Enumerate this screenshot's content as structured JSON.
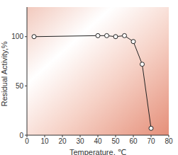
{
  "chart_data": {
    "type": "line",
    "x_label": "Temperature, ℃",
    "y_label": "Residual Activity,%",
    "x": [
      4,
      40,
      45,
      50,
      55,
      60,
      65,
      70
    ],
    "values": [
      100,
      101,
      101,
      100,
      101,
      95,
      72,
      7
    ],
    "color": "#222222",
    "marker": "circle",
    "xlim": [
      0,
      80
    ],
    "xticks": [
      0,
      10,
      20,
      30,
      40,
      50,
      60,
      70,
      80
    ],
    "ylim": [
      0,
      130
    ],
    "yticks": [
      0,
      50,
      100
    ],
    "grid": false
  }
}
